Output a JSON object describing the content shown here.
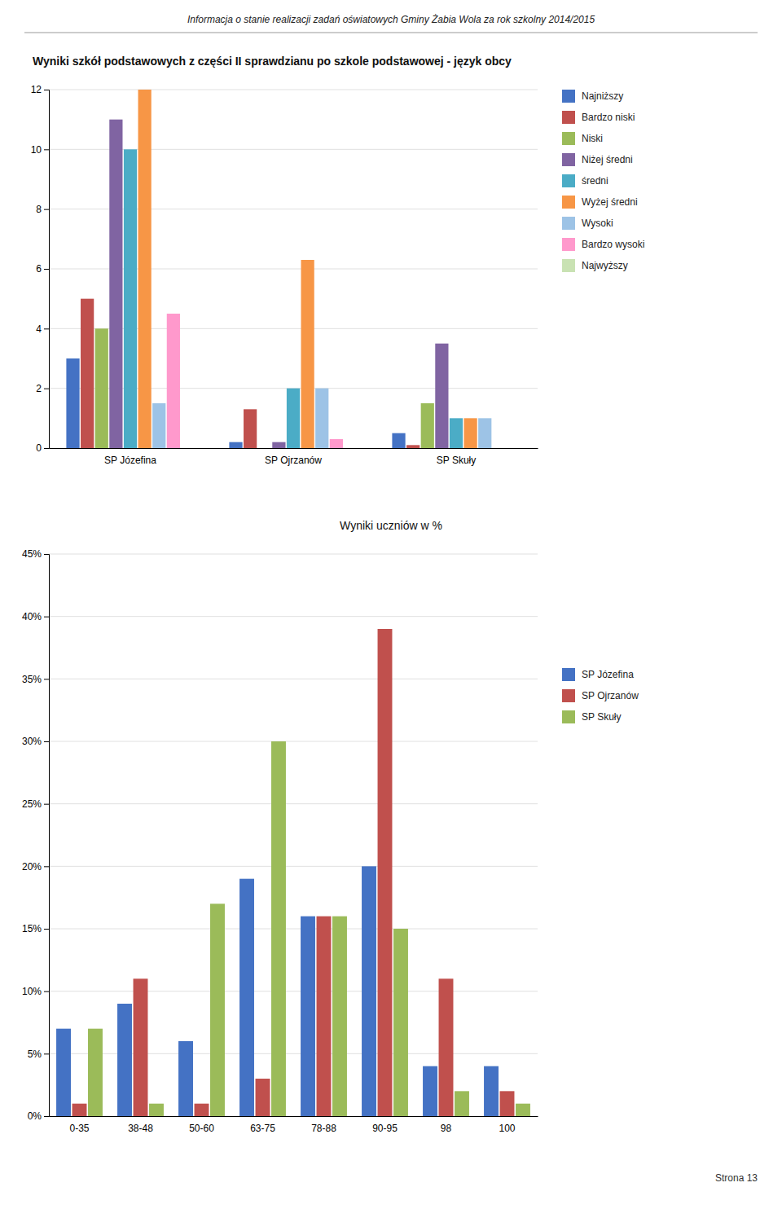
{
  "title": "Informacja o stanie realizacji zadań oświatowych Gminy Żabia Wola za rok szkolny 2014/2015",
  "annotations": [
    "Strona 13"
  ],
  "chart_data": [
    {
      "type": "bar",
      "title": "Wyniki szkół podstawowych z części II sprawdzianu po szkole podstawowej - język obcy",
      "categories": [
        "SP Józefina",
        "SP Ojrzanów",
        "SP Skuły"
      ],
      "series": [
        {
          "name": "Najniższy",
          "color": "#4472C4",
          "values": [
            3,
            0.2,
            0.5
          ]
        },
        {
          "name": "Bardzo niski",
          "color": "#C0504D",
          "values": [
            5,
            1.3,
            0.1
          ]
        },
        {
          "name": "Niski",
          "color": "#9BBB59",
          "values": [
            4,
            0,
            1.5
          ]
        },
        {
          "name": "Niżej średni",
          "color": "#8064A2",
          "values": [
            11,
            0.2,
            3.5
          ]
        },
        {
          "name": "średni",
          "color": "#4BACC6",
          "values": [
            10,
            2,
            1
          ]
        },
        {
          "name": "Wyżej średni",
          "color": "#F79646",
          "values": [
            12,
            6.3,
            1
          ]
        },
        {
          "name": "Wysoki",
          "color": "#9DC3E6",
          "values": [
            1.5,
            2,
            1
          ]
        },
        {
          "name": "Bardzo wysoki",
          "color": "#FF99CC",
          "values": [
            4.5,
            0.3,
            0
          ]
        },
        {
          "name": "Najwyższy",
          "color": "#C9E2B3",
          "values": [
            0,
            0,
            0
          ]
        }
      ],
      "ylim": [
        0,
        12
      ],
      "yticks": [
        0,
        2,
        4,
        6,
        8,
        10,
        12
      ],
      "grid": true,
      "legend": "right"
    },
    {
      "type": "bar",
      "title": "Wyniki uczniów w %",
      "categories": [
        "0-35",
        "38-48",
        "50-60",
        "63-75",
        "78-88",
        "90-95",
        "98",
        "100"
      ],
      "series": [
        {
          "name": "SP Józefina",
          "color": "#4472C4",
          "values": [
            0.07,
            0.09,
            0.06,
            0.19,
            0.16,
            0.2,
            0.04,
            0.04
          ]
        },
        {
          "name": "SP Ojrzanów",
          "color": "#C0504D",
          "values": [
            0.01,
            0.11,
            0.01,
            0.03,
            0.16,
            0.39,
            0.11,
            0.02
          ]
        },
        {
          "name": "SP Skuły",
          "color": "#9BBB59",
          "values": [
            0.07,
            0.01,
            0.17,
            0.3,
            0.16,
            0.15,
            0.02,
            0.01
          ]
        }
      ],
      "ylim": [
        0,
        0.45
      ],
      "yticks": [
        {
          "value": 0,
          "label": "0%"
        },
        {
          "value": 0.05,
          "label": "5%"
        },
        {
          "value": 0.1,
          "label": "10%"
        },
        {
          "value": 0.15,
          "label": "15%"
        },
        {
          "value": 0.2,
          "label": "20%"
        },
        {
          "value": 0.25,
          "label": "25%"
        },
        {
          "value": 0.3,
          "label": "30%"
        },
        {
          "value": 0.35,
          "label": "35%"
        },
        {
          "value": 0.4,
          "label": "40%"
        },
        {
          "value": 0.45,
          "label": "45%"
        }
      ],
      "grid": true,
      "legend": "right"
    }
  ]
}
